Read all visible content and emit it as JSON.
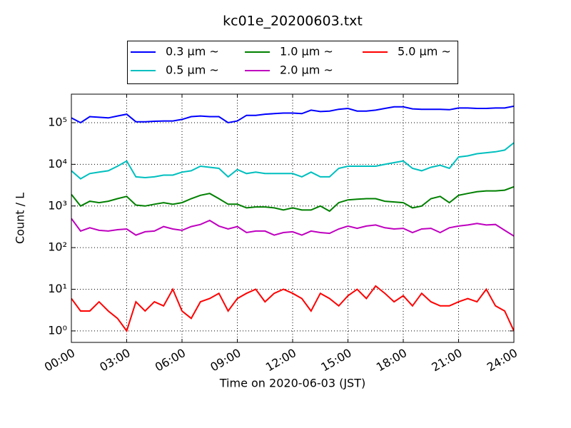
{
  "chart_data": {
    "type": "line",
    "title": "kc01e_20200603.txt",
    "xlabel": "Time on 2020-06-03 (JST)",
    "ylabel": "Count / L",
    "ylog": true,
    "grid": true,
    "legend": "top",
    "xlim": [
      0,
      24
    ],
    "xticks": [
      {
        "value": 0,
        "label": "00:00"
      },
      {
        "value": 3,
        "label": "03:00"
      },
      {
        "value": 6,
        "label": "06:00"
      },
      {
        "value": 9,
        "label": "09:00"
      },
      {
        "value": 12,
        "label": "12:00"
      },
      {
        "value": 15,
        "label": "15:00"
      },
      {
        "value": 18,
        "label": "18:00"
      },
      {
        "value": 21,
        "label": "21:00"
      },
      {
        "value": 24,
        "label": "24:00"
      }
    ],
    "ylim": [
      0.53,
      484000
    ],
    "yticks": [
      {
        "value": 1,
        "label": "10⁰"
      },
      {
        "value": 10,
        "label": "10¹"
      },
      {
        "value": 100,
        "label": "10²"
      },
      {
        "value": 1000,
        "label": "10³"
      },
      {
        "value": 10000,
        "label": "10⁴"
      },
      {
        "value": 100000,
        "label": "10⁵"
      }
    ],
    "x": [
      0,
      0.5,
      1,
      1.5,
      2,
      2.5,
      3,
      3.5,
      4,
      4.5,
      5,
      5.5,
      6,
      6.5,
      7,
      7.5,
      8,
      8.5,
      9,
      9.5,
      10,
      10.5,
      11,
      11.5,
      12,
      12.5,
      13,
      13.5,
      14,
      14.5,
      15,
      15.5,
      16,
      16.5,
      17,
      17.5,
      18,
      18.5,
      19,
      19.5,
      20,
      20.5,
      21,
      21.5,
      22,
      22.5,
      23,
      23.5,
      24
    ],
    "series": [
      {
        "name": "0.3 μm ~",
        "color": "#0000ff",
        "values": [
          130000,
          100000,
          140000,
          135000,
          130000,
          145000,
          160000,
          105000,
          105000,
          108000,
          110000,
          110000,
          120000,
          140000,
          145000,
          140000,
          140000,
          100000,
          110000,
          150000,
          150000,
          160000,
          165000,
          170000,
          170000,
          165000,
          200000,
          185000,
          190000,
          210000,
          220000,
          190000,
          190000,
          200000,
          220000,
          240000,
          240000,
          215000,
          210000,
          210000,
          210000,
          205000,
          225000,
          225000,
          220000,
          220000,
          225000,
          225000,
          250000
        ]
      },
      {
        "name": "0.5 μm ~",
        "color": "#00bfbf",
        "values": [
          7000,
          4500,
          6000,
          6500,
          7000,
          9000,
          12000,
          5000,
          4800,
          5000,
          5500,
          5500,
          6500,
          7000,
          9000,
          8500,
          8000,
          5000,
          7500,
          6000,
          6500,
          6000,
          6000,
          6000,
          6000,
          5000,
          6500,
          5000,
          5000,
          8000,
          9000,
          9000,
          9000,
          9000,
          10000,
          11000,
          12000,
          8000,
          7000,
          8500,
          9500,
          8000,
          15000,
          16000,
          18000,
          19000,
          20000,
          22000,
          33000
        ]
      },
      {
        "name": "1.0 μm ~",
        "color": "#008000",
        "values": [
          1900,
          1000,
          1300,
          1200,
          1300,
          1500,
          1700,
          1050,
          1000,
          1100,
          1200,
          1100,
          1200,
          1500,
          1800,
          2000,
          1500,
          1100,
          1100,
          900,
          950,
          950,
          900,
          800,
          900,
          800,
          800,
          1000,
          750,
          1200,
          1400,
          1450,
          1500,
          1500,
          1300,
          1250,
          1200,
          900,
          1000,
          1500,
          1700,
          1200,
          1800,
          2000,
          2200,
          2300,
          2300,
          2400,
          2900
        ]
      },
      {
        "name": "2.0 μm ~",
        "color": "#bf00bf",
        "values": [
          500,
          250,
          300,
          260,
          250,
          270,
          280,
          200,
          240,
          250,
          320,
          280,
          260,
          320,
          360,
          450,
          330,
          280,
          320,
          230,
          250,
          250,
          200,
          230,
          240,
          200,
          250,
          230,
          220,
          280,
          330,
          290,
          330,
          350,
          300,
          280,
          290,
          230,
          280,
          290,
          230,
          300,
          330,
          350,
          380,
          350,
          360,
          260,
          190
        ]
      },
      {
        "name": "5.0 μm ~",
        "color": "#ff0000",
        "values": [
          6,
          3,
          3,
          5,
          3,
          2,
          1,
          5,
          3,
          5,
          4,
          10,
          3,
          2,
          5,
          6,
          8,
          3,
          6,
          8,
          10,
          5,
          8,
          10,
          8,
          6,
          3,
          8,
          6,
          4,
          7,
          10,
          6,
          12,
          8,
          5,
          7,
          4,
          8,
          5,
          4,
          4,
          5,
          6,
          5,
          10,
          4,
          3,
          1
        ]
      }
    ]
  }
}
